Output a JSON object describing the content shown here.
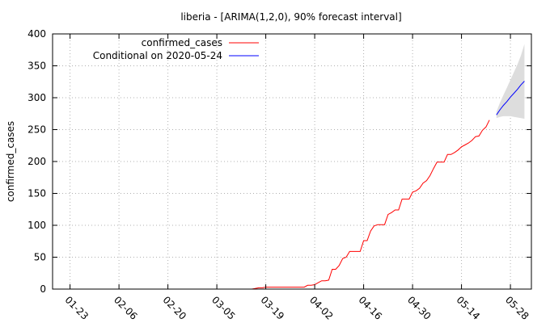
{
  "chart_data": {
    "type": "line",
    "title": "liberia -  [ARIMA(1,2,0), 90% forecast interval]",
    "xlabel": "",
    "ylabel": "confirmed_cases",
    "ylim": [
      0,
      400
    ],
    "y_ticks": [
      0,
      50,
      100,
      150,
      200,
      250,
      300,
      350,
      400
    ],
    "x_ticks": [
      "01-23",
      "02-06",
      "02-20",
      "03-05",
      "03-19",
      "04-02",
      "04-16",
      "04-30",
      "05-14",
      "05-28"
    ],
    "x_range_days": [
      -5,
      132
    ],
    "grid": true,
    "legend_position": "top-left",
    "series": [
      {
        "name": "confirmed_cases",
        "color": "#ff0000",
        "points": [
          [
            52,
            0
          ],
          [
            53,
            1
          ],
          [
            54,
            2
          ],
          [
            55,
            2
          ],
          [
            56,
            3
          ],
          [
            57,
            3
          ],
          [
            58,
            3
          ],
          [
            59,
            3
          ],
          [
            60,
            3
          ],
          [
            61,
            3
          ],
          [
            62,
            3
          ],
          [
            63,
            3
          ],
          [
            64,
            3
          ],
          [
            65,
            3
          ],
          [
            66,
            3
          ],
          [
            67,
            3
          ],
          [
            68,
            6
          ],
          [
            69,
            6
          ],
          [
            70,
            7
          ],
          [
            71,
            10
          ],
          [
            72,
            13
          ],
          [
            73,
            13
          ],
          [
            74,
            14
          ],
          [
            75,
            31
          ],
          [
            76,
            31
          ],
          [
            77,
            37
          ],
          [
            78,
            48
          ],
          [
            79,
            50
          ],
          [
            80,
            59
          ],
          [
            81,
            59
          ],
          [
            82,
            59
          ],
          [
            83,
            59
          ],
          [
            84,
            76
          ],
          [
            85,
            76
          ],
          [
            86,
            91
          ],
          [
            87,
            99
          ],
          [
            88,
            101
          ],
          [
            89,
            101
          ],
          [
            90,
            101
          ],
          [
            91,
            117
          ],
          [
            92,
            120
          ],
          [
            93,
            124
          ],
          [
            94,
            124
          ],
          [
            95,
            141
          ],
          [
            96,
            141
          ],
          [
            97,
            141
          ],
          [
            98,
            152
          ],
          [
            99,
            154
          ],
          [
            100,
            158
          ],
          [
            101,
            166
          ],
          [
            102,
            170
          ],
          [
            103,
            178
          ],
          [
            104,
            189
          ],
          [
            105,
            199
          ],
          [
            106,
            199
          ],
          [
            107,
            199
          ],
          [
            108,
            211
          ],
          [
            109,
            211
          ],
          [
            110,
            214
          ],
          [
            111,
            218
          ],
          [
            112,
            223
          ],
          [
            113,
            226
          ],
          [
            114,
            229
          ],
          [
            115,
            233
          ],
          [
            116,
            239
          ],
          [
            117,
            240
          ],
          [
            118,
            249
          ],
          [
            119,
            254
          ],
          [
            120,
            265
          ]
        ]
      },
      {
        "name": "Conditional on 2020-05-24",
        "color": "#0000ff",
        "points": [
          [
            122,
            273
          ],
          [
            123,
            281
          ],
          [
            124,
            288
          ],
          [
            125,
            294
          ],
          [
            126,
            301
          ],
          [
            127,
            307
          ],
          [
            128,
            313
          ],
          [
            129,
            320
          ],
          [
            130,
            326
          ]
        ]
      }
    ],
    "forecast_band": {
      "color": "#dddddd",
      "x": [
        122,
        123,
        124,
        125,
        126,
        127,
        128,
        129,
        130
      ],
      "lower": [
        268,
        270,
        271,
        271,
        271,
        270,
        269,
        268,
        267
      ],
      "upper": [
        278,
        292,
        304,
        316,
        328,
        340,
        352,
        366,
        384
      ]
    }
  }
}
